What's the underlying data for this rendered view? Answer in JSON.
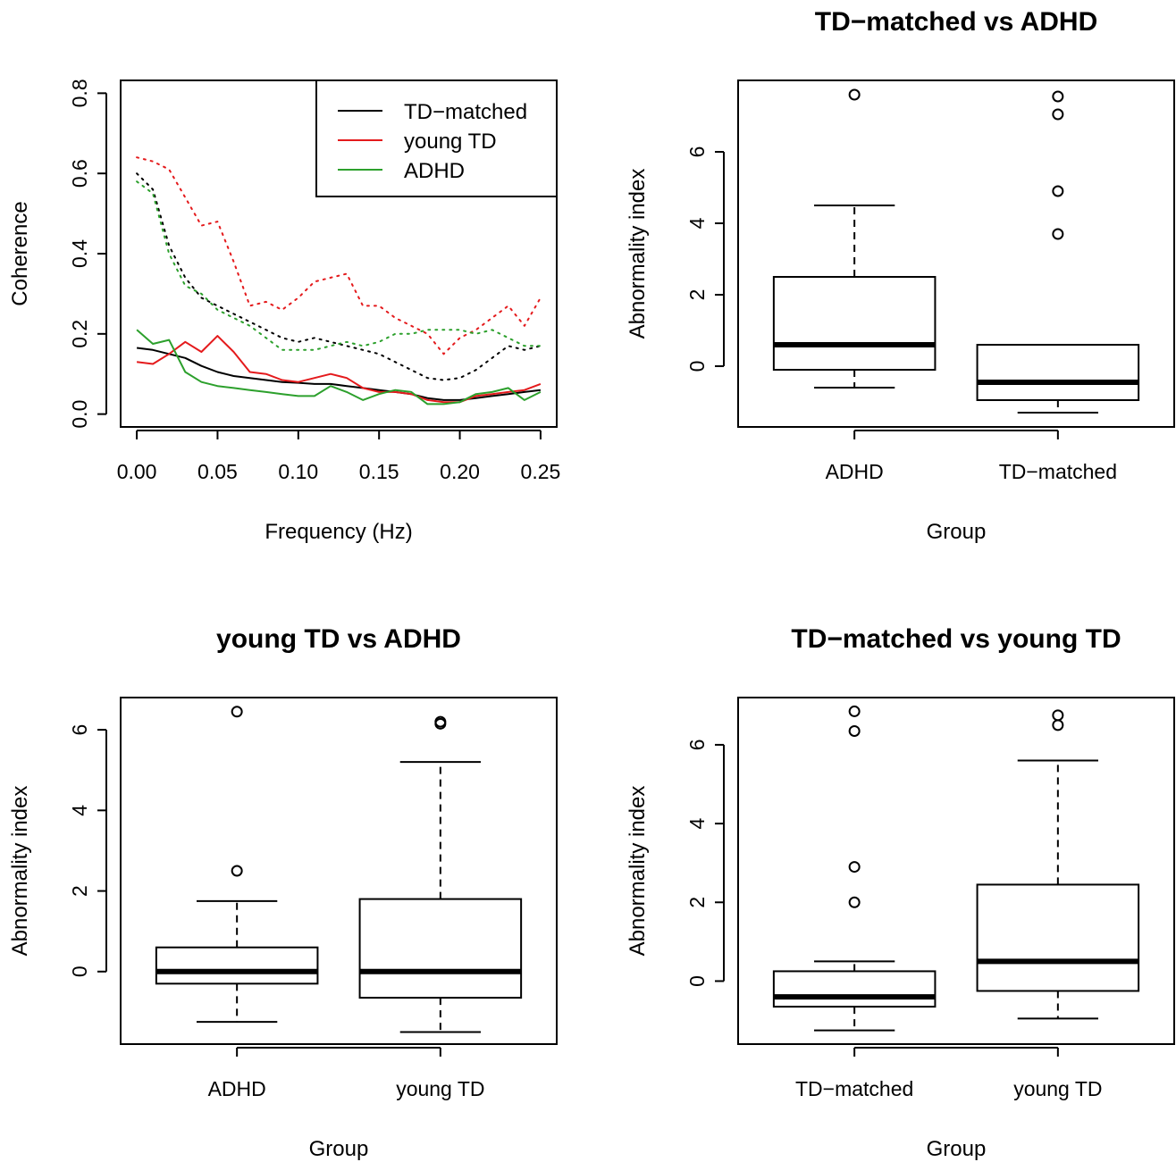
{
  "chart_data": [
    {
      "type": "line",
      "title": "",
      "xlabel": "Frequency (Hz)",
      "ylabel": "Coherence",
      "xlim": [
        0.0,
        0.25
      ],
      "ylim": [
        0.0,
        0.8
      ],
      "xticks": [
        "0.00",
        "0.05",
        "0.10",
        "0.15",
        "0.20",
        "0.25"
      ],
      "yticks": [
        "0.0",
        "0.2",
        "0.4",
        "0.6",
        "0.8"
      ],
      "legend": {
        "position": "top-right",
        "entries": [
          "TD−matched",
          "young TD",
          "ADHD"
        ]
      },
      "grid": false,
      "series": [
        {
          "name": "TD−matched",
          "color": "#000000",
          "style": "solid",
          "x": [
            0.0,
            0.01,
            0.02,
            0.03,
            0.04,
            0.05,
            0.06,
            0.07,
            0.08,
            0.09,
            0.1,
            0.11,
            0.12,
            0.13,
            0.14,
            0.15,
            0.16,
            0.17,
            0.18,
            0.19,
            0.2,
            0.21,
            0.22,
            0.23,
            0.24,
            0.25
          ],
          "y": [
            0.165,
            0.16,
            0.15,
            0.14,
            0.12,
            0.105,
            0.095,
            0.09,
            0.085,
            0.08,
            0.078,
            0.075,
            0.075,
            0.07,
            0.065,
            0.06,
            0.055,
            0.05,
            0.04,
            0.035,
            0.035,
            0.04,
            0.045,
            0.05,
            0.055,
            0.06
          ]
        },
        {
          "name": "young TD",
          "color": "#e41a1c",
          "style": "solid",
          "x": [
            0.0,
            0.01,
            0.02,
            0.03,
            0.04,
            0.05,
            0.06,
            0.07,
            0.08,
            0.09,
            0.1,
            0.11,
            0.12,
            0.13,
            0.14,
            0.15,
            0.16,
            0.17,
            0.18,
            0.19,
            0.2,
            0.21,
            0.22,
            0.23,
            0.24,
            0.25
          ],
          "y": [
            0.13,
            0.125,
            0.15,
            0.18,
            0.155,
            0.195,
            0.155,
            0.105,
            0.1,
            0.085,
            0.08,
            0.09,
            0.1,
            0.09,
            0.065,
            0.055,
            0.055,
            0.05,
            0.035,
            0.03,
            0.03,
            0.045,
            0.05,
            0.055,
            0.06,
            0.075
          ]
        },
        {
          "name": "ADHD",
          "color": "#2ca02c",
          "style": "solid",
          "x": [
            0.0,
            0.01,
            0.02,
            0.03,
            0.04,
            0.05,
            0.06,
            0.07,
            0.08,
            0.09,
            0.1,
            0.11,
            0.12,
            0.13,
            0.14,
            0.15,
            0.16,
            0.17,
            0.18,
            0.19,
            0.2,
            0.21,
            0.22,
            0.23,
            0.24,
            0.25
          ],
          "y": [
            0.21,
            0.175,
            0.185,
            0.105,
            0.08,
            0.07,
            0.065,
            0.06,
            0.055,
            0.05,
            0.045,
            0.045,
            0.07,
            0.055,
            0.035,
            0.05,
            0.06,
            0.055,
            0.025,
            0.025,
            0.03,
            0.05,
            0.055,
            0.065,
            0.035,
            0.055
          ]
        },
        {
          "name": "",
          "color": "#000000",
          "style": "dotted",
          "x": [
            0.0,
            0.01,
            0.02,
            0.03,
            0.04,
            0.05,
            0.06,
            0.07,
            0.08,
            0.09,
            0.1,
            0.11,
            0.12,
            0.13,
            0.14,
            0.15,
            0.16,
            0.17,
            0.18,
            0.19,
            0.2,
            0.21,
            0.22,
            0.23,
            0.24,
            0.25
          ],
          "y": [
            0.6,
            0.56,
            0.42,
            0.34,
            0.29,
            0.27,
            0.25,
            0.23,
            0.21,
            0.19,
            0.18,
            0.19,
            0.18,
            0.17,
            0.16,
            0.15,
            0.13,
            0.11,
            0.09,
            0.085,
            0.09,
            0.11,
            0.14,
            0.17,
            0.16,
            0.17
          ]
        },
        {
          "name": "",
          "color": "#e41a1c",
          "style": "dotted",
          "x": [
            0.0,
            0.01,
            0.02,
            0.03,
            0.04,
            0.05,
            0.06,
            0.07,
            0.08,
            0.09,
            0.1,
            0.11,
            0.12,
            0.13,
            0.14,
            0.15,
            0.16,
            0.17,
            0.18,
            0.19,
            0.2,
            0.21,
            0.22,
            0.23,
            0.24,
            0.25
          ],
          "y": [
            0.64,
            0.63,
            0.61,
            0.54,
            0.47,
            0.48,
            0.38,
            0.27,
            0.28,
            0.26,
            0.29,
            0.33,
            0.34,
            0.35,
            0.27,
            0.27,
            0.24,
            0.22,
            0.2,
            0.15,
            0.19,
            0.21,
            0.24,
            0.27,
            0.22,
            0.29
          ]
        },
        {
          "name": "",
          "color": "#2ca02c",
          "style": "dotted",
          "x": [
            0.0,
            0.01,
            0.02,
            0.03,
            0.04,
            0.05,
            0.06,
            0.07,
            0.08,
            0.09,
            0.1,
            0.11,
            0.12,
            0.13,
            0.14,
            0.15,
            0.16,
            0.17,
            0.18,
            0.19,
            0.2,
            0.21,
            0.22,
            0.23,
            0.24,
            0.25
          ],
          "y": [
            0.58,
            0.55,
            0.4,
            0.32,
            0.3,
            0.26,
            0.24,
            0.22,
            0.19,
            0.16,
            0.16,
            0.16,
            0.17,
            0.18,
            0.17,
            0.18,
            0.2,
            0.2,
            0.21,
            0.21,
            0.21,
            0.2,
            0.21,
            0.19,
            0.17,
            0.17
          ]
        }
      ]
    },
    {
      "type": "boxplot",
      "title": "TD−matched vs ADHD",
      "xlabel": "Group",
      "ylabel": "Abnormality index",
      "ylim": [
        -1.7,
        8.0
      ],
      "yticks": [
        "0",
        "2",
        "4",
        "6"
      ],
      "groups": [
        {
          "name": "ADHD",
          "min": -0.6,
          "q1": -0.1,
          "median": 0.6,
          "q3": 2.5,
          "max": 4.5,
          "outliers": [
            7.6
          ]
        },
        {
          "name": "TD−matched",
          "min": -1.3,
          "q1": -0.95,
          "median": -0.45,
          "q3": 0.6,
          "max": 0.6,
          "outliers": [
            7.55,
            7.05,
            4.9,
            3.7
          ]
        }
      ]
    },
    {
      "type": "boxplot",
      "title": "young TD vs ADHD",
      "xlabel": "Group",
      "ylabel": "Abnormality index",
      "ylim": [
        -1.8,
        6.8
      ],
      "yticks": [
        "0",
        "2",
        "4",
        "6"
      ],
      "groups": [
        {
          "name": "ADHD",
          "min": -1.25,
          "q1": -0.3,
          "median": 0.0,
          "q3": 0.6,
          "max": 1.75,
          "outliers": [
            6.45,
            2.5
          ]
        },
        {
          "name": "young TD",
          "min": -1.5,
          "q1": -0.65,
          "median": 0.0,
          "q3": 1.8,
          "max": 5.2,
          "outliers": [
            6.2,
            6.15
          ]
        }
      ]
    },
    {
      "type": "boxplot",
      "title": "TD−matched vs young TD",
      "xlabel": "Group",
      "ylabel": "Abnormality index",
      "ylim": [
        -1.6,
        7.2
      ],
      "yticks": [
        "0",
        "2",
        "4",
        "6"
      ],
      "groups": [
        {
          "name": "TD−matched",
          "min": -1.25,
          "q1": -0.65,
          "median": -0.4,
          "q3": 0.25,
          "max": 0.5,
          "outliers": [
            6.85,
            6.35,
            2.9,
            2.0
          ]
        },
        {
          "name": "young TD",
          "min": -0.95,
          "q1": -0.25,
          "median": 0.5,
          "q3": 2.45,
          "max": 5.6,
          "outliers": [
            6.75,
            6.5
          ]
        }
      ]
    }
  ]
}
